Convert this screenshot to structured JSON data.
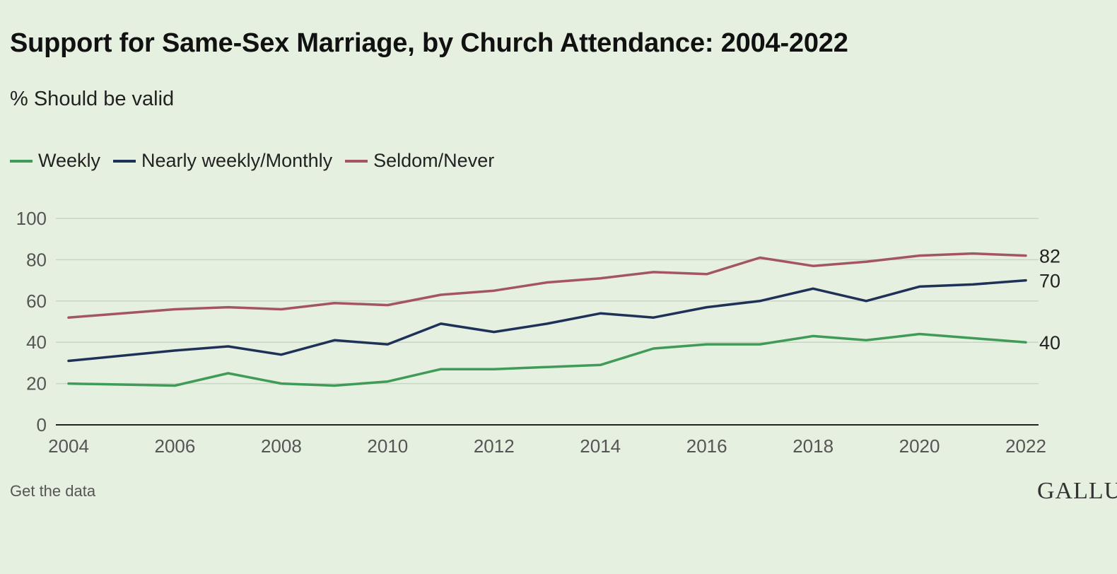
{
  "title": "Support for Same-Sex Marriage, by Church Attendance: 2004-2022",
  "subtitle": "% Should be valid",
  "footer": {
    "get_data": "Get the data",
    "logo": "GALLU"
  },
  "chart_data": {
    "type": "line",
    "x": [
      2004,
      2006,
      2007,
      2008,
      2009,
      2010,
      2011,
      2012,
      2013,
      2014,
      2015,
      2016,
      2017,
      2018,
      2019,
      2020,
      2021,
      2022
    ],
    "series": [
      {
        "name": "Weekly",
        "color": "#3f9b57",
        "values": [
          20,
          19,
          25,
          20,
          19,
          21,
          27,
          27,
          28,
          29,
          37,
          39,
          39,
          43,
          41,
          44,
          42,
          40
        ],
        "end_label": "40"
      },
      {
        "name": "Nearly weekly/Monthly",
        "color": "#1e3158",
        "values": [
          31,
          36,
          38,
          34,
          41,
          39,
          49,
          45,
          49,
          54,
          52,
          57,
          60,
          66,
          60,
          67,
          68,
          70
        ],
        "end_label": "70"
      },
      {
        "name": "Seldom/Never",
        "color": "#a45563",
        "values": [
          52,
          56,
          57,
          56,
          59,
          58,
          63,
          65,
          69,
          71,
          74,
          73,
          81,
          77,
          79,
          82,
          83,
          82
        ],
        "end_label": "82"
      }
    ],
    "xticks": [
      "2004",
      "2006",
      "2008",
      "2010",
      "2012",
      "2014",
      "2016",
      "2018",
      "2020",
      "2022"
    ],
    "yticks": [
      "0",
      "20",
      "40",
      "60",
      "80",
      "100"
    ],
    "xlim": [
      2004,
      2022
    ],
    "ylim": [
      0,
      100
    ],
    "grid": true,
    "legend_position": "top-left"
  }
}
